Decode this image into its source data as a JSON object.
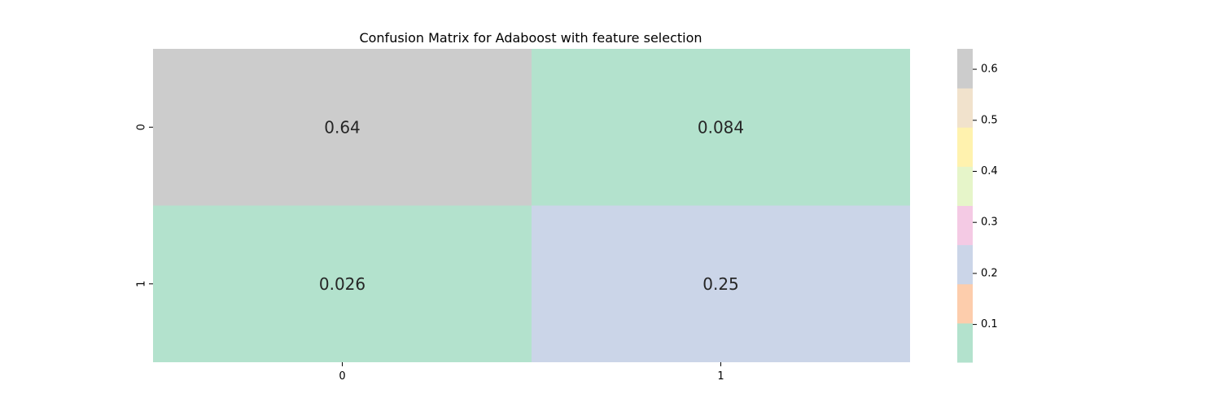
{
  "chart_data": {
    "type": "heatmap",
    "title": "Confusion Matrix for Adaboost with feature selection",
    "x_categories": [
      "0",
      "1"
    ],
    "y_categories": [
      "0",
      "1"
    ],
    "values": [
      [
        0.64,
        0.084
      ],
      [
        0.026,
        0.25
      ]
    ],
    "annotations": [
      [
        "0.64",
        "0.084"
      ],
      [
        "0.026",
        "0.25"
      ]
    ],
    "colorscale": {
      "name": "Pastel2",
      "vmin": 0.026,
      "vmax": 0.64,
      "colors": [
        "#b3e2cd",
        "#fdcdac",
        "#cbd5e8",
        "#f4cae4",
        "#e6f5c9",
        "#fff2ae",
        "#f1e2cc",
        "#cccccc"
      ]
    },
    "colorbar": {
      "ticks": [
        0.1,
        0.2,
        0.3,
        0.4,
        0.5,
        0.6
      ],
      "tick_labels": [
        "0.1",
        "0.2",
        "0.3",
        "0.4",
        "0.5",
        "0.6"
      ]
    }
  }
}
